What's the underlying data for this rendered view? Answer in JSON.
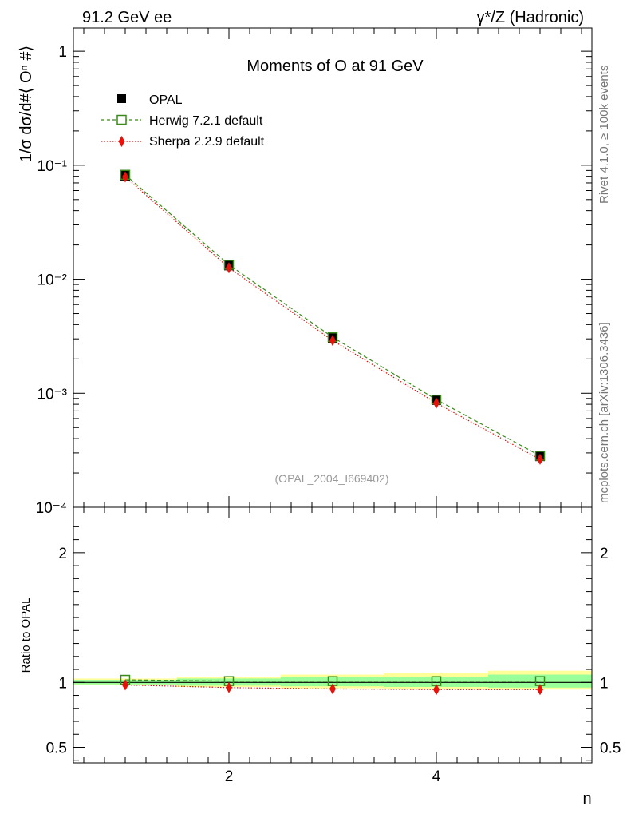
{
  "header": {
    "left": "91.2 GeV ee",
    "right": "γ*/Z (Hadronic)"
  },
  "side_text": {
    "top": "Rivet 4.1.0, ≥ 100k events",
    "bottom": "mcplots.cern.ch [arXiv:1306.3436]"
  },
  "chart_data": {
    "type": "line",
    "title": "Moments of O at 91 GeV",
    "ylabel": "1/σ  dσ/d#⟨ Oⁿ #⟩",
    "ratio_ylabel": "Ratio to OPAL",
    "xlabel": "n",
    "watermark": "(OPAL_2004_I669402)",
    "x": [
      1,
      2,
      3,
      4,
      5
    ],
    "xlim": [
      0.5,
      5.5
    ],
    "ylim": [
      0.0001,
      1.6
    ],
    "yscale": "log",
    "yticks": [
      {
        "label": "1",
        "value": 1
      },
      {
        "label": "10⁻¹",
        "value": 0.1
      },
      {
        "label": "10⁻²",
        "value": 0.01
      },
      {
        "label": "10⁻³",
        "value": 0.001
      },
      {
        "label": "10⁻⁴",
        "value": 0.0001
      }
    ],
    "xticks": [
      {
        "label": "2",
        "value": 2
      },
      {
        "label": "4",
        "value": 4
      }
    ],
    "ratio_ylim": [
      0.38,
      2.35
    ],
    "ratio_yticks": [
      {
        "label": "2",
        "value": 2
      },
      {
        "label": "1",
        "value": 1
      },
      {
        "label": "0.5",
        "value": 0.5
      }
    ],
    "series": [
      {
        "name": "OPAL",
        "color": "#000000",
        "marker": "filled-square",
        "values": [
          0.081,
          0.0132,
          0.00305,
          0.00087,
          0.00028
        ],
        "ratio": [
          1,
          1,
          1,
          1,
          1
        ]
      },
      {
        "name": "Herwig 7.2.1 default",
        "color": "#3a8a1a",
        "marker": "open-square",
        "dash": "dashed",
        "values": [
          0.0825,
          0.0134,
          0.0031,
          0.00088,
          0.000283
        ],
        "ratio": [
          1.02,
          1.01,
          1.01,
          1.01,
          1.01
        ]
      },
      {
        "name": "Sherpa 2.2.9 default",
        "color": "#e8120c",
        "marker": "filled-diamond",
        "dash": "dotted",
        "values": [
          0.079,
          0.0126,
          0.0029,
          0.00082,
          0.000264
        ],
        "ratio": [
          0.98,
          0.96,
          0.95,
          0.945,
          0.945
        ]
      }
    ],
    "bands": {
      "outer_color": "#ffff99",
      "inner_color": "#99ff99",
      "outer": [
        [
          0.98,
          1.03
        ],
        [
          0.965,
          1.045
        ],
        [
          0.955,
          1.06
        ],
        [
          0.95,
          1.07
        ],
        [
          0.945,
          1.09
        ]
      ],
      "inner": [
        [
          0.985,
          1.02
        ],
        [
          0.975,
          1.03
        ],
        [
          0.97,
          1.04
        ],
        [
          0.965,
          1.045
        ],
        [
          0.96,
          1.06
        ]
      ]
    }
  }
}
